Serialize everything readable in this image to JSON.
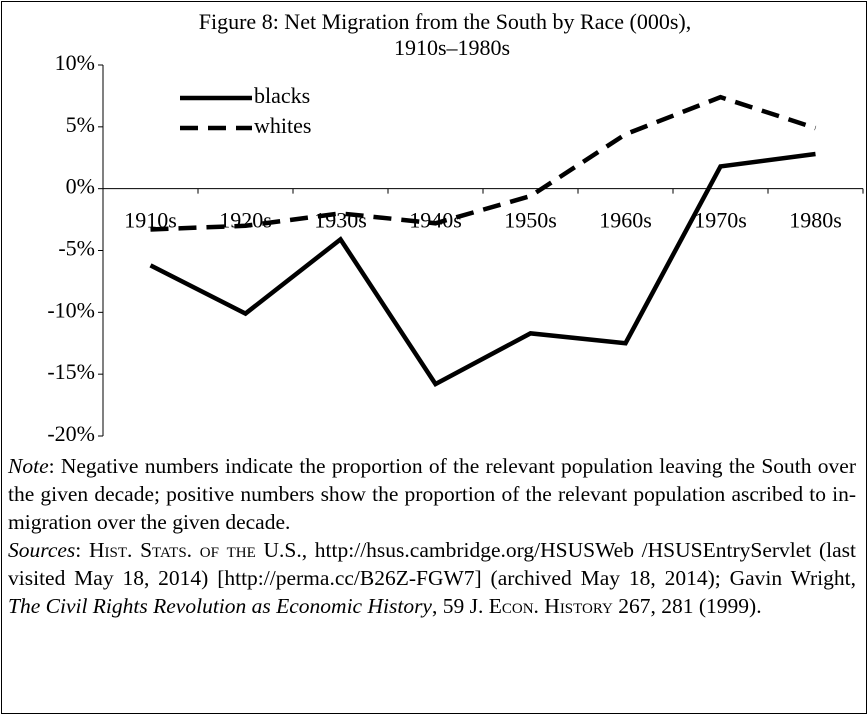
{
  "chart_data": {
    "type": "line",
    "title": [
      "Figure 8: Net Migration from the South by Race (000s),",
      "1910s–1980s"
    ],
    "categories": [
      "1910s",
      "1920s",
      "1930s",
      "1940s",
      "1950s",
      "1960s",
      "1970s",
      "1980s"
    ],
    "series": [
      {
        "name": "blacks",
        "color": "#000000",
        "dash": "solid",
        "values": [
          -6.2,
          -10.1,
          -4.1,
          -15.8,
          -11.7,
          -12.5,
          1.8,
          2.8
        ]
      },
      {
        "name": "whites",
        "color": "#000000",
        "dash": "dashed",
        "values": [
          -3.3,
          -3.0,
          -2.0,
          -2.8,
          -0.6,
          4.4,
          7.4,
          4.9
        ]
      }
    ],
    "ylim": [
      -20,
      10
    ],
    "yticks": [
      {
        "value": 10,
        "label": "10%"
      },
      {
        "value": 5,
        "label": "5%"
      },
      {
        "value": 0,
        "label": "0%"
      },
      {
        "value": -5,
        "label": "-5%"
      },
      {
        "value": -10,
        "label": "-10%"
      },
      {
        "value": -15,
        "label": "-15%"
      },
      {
        "value": -20,
        "label": "-20%"
      }
    ],
    "grid": false,
    "legend": "top-left"
  },
  "note": {
    "label": "Note",
    "text": ":  Negative numbers indicate the proportion of the relevant population leaving the South over the given decade; positive numbers show the proportion of the relevant population ascribed to in-migration over the given decade."
  },
  "sources": {
    "parts": [
      "Sources",
      ":  ",
      "Hist. Stats. of the U.S.",
      ", http://hsus.cambridge.org/HSUSWeb /HSUSEntryServlet (last visited May 18, 2014) [http://perma.cc/B26Z-FGW7] (archived May 18, 2014); Gavin Wright, ",
      "The Civil Rights Revolution as Economic History",
      ", 59 J. ",
      "Econ. History",
      " 267, 281 (1999)."
    ]
  }
}
